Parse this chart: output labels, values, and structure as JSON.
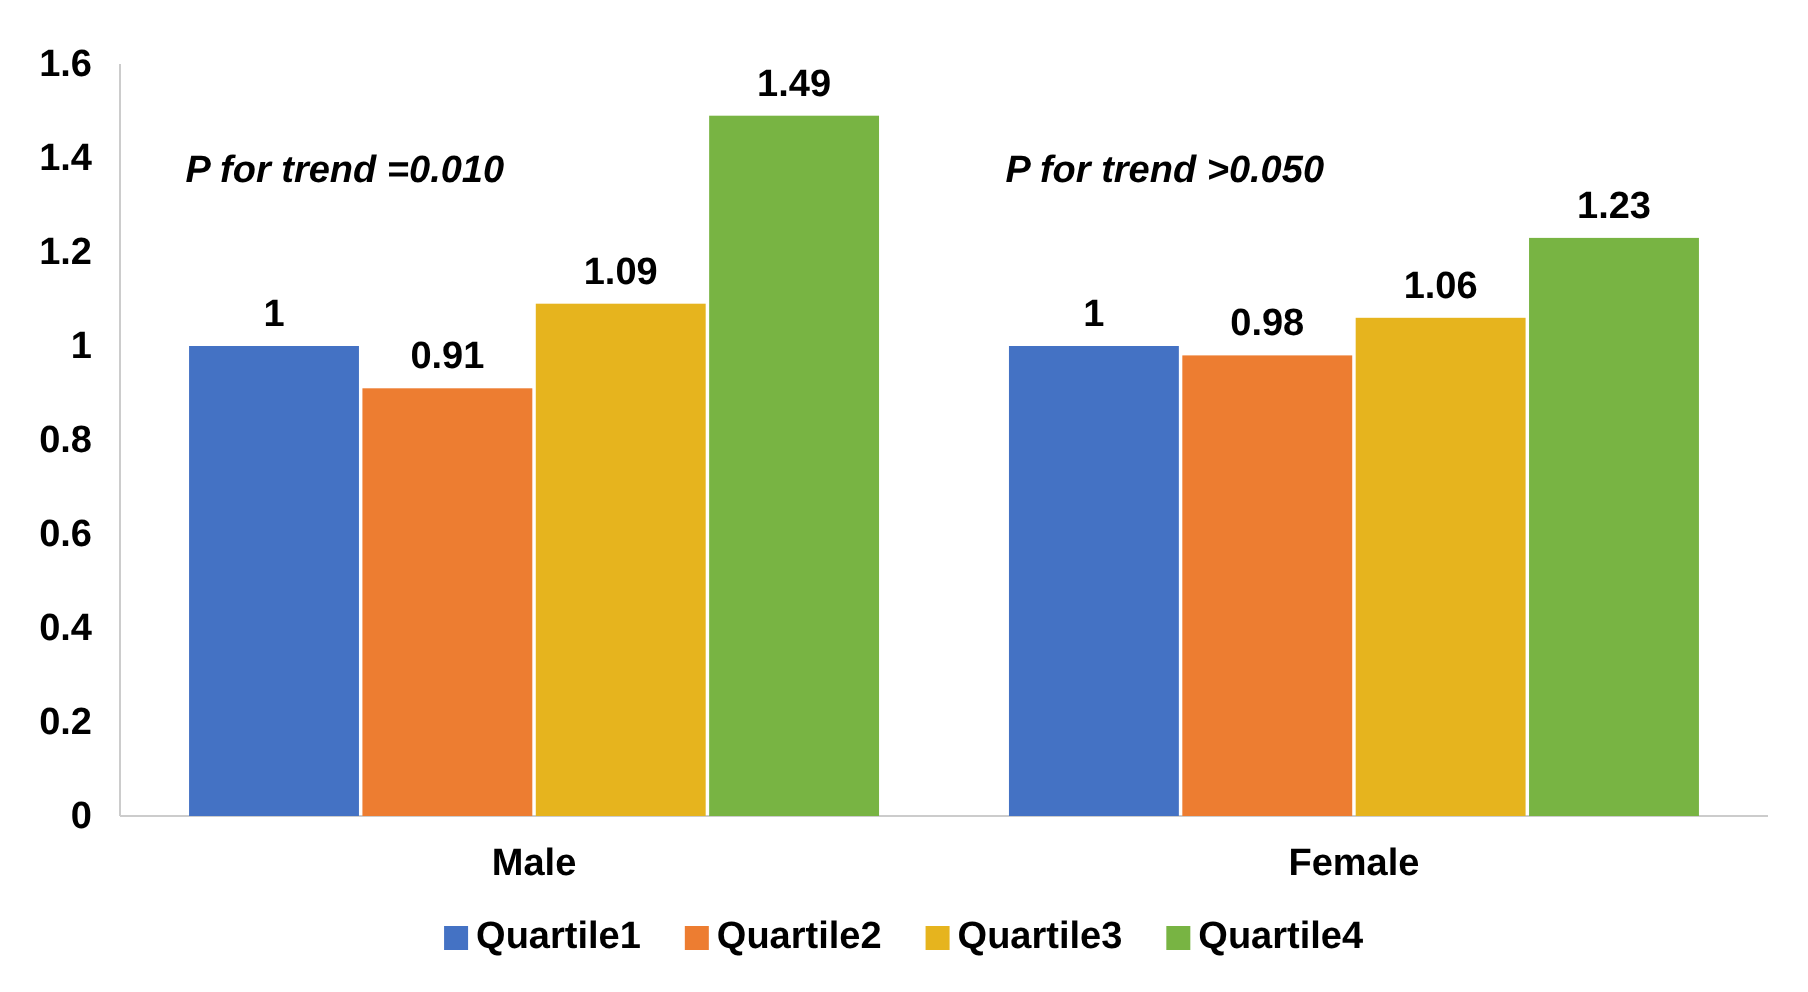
{
  "chart_data": {
    "type": "bar",
    "categories": [
      "Male",
      "Female"
    ],
    "series": [
      {
        "name": "Quartile1",
        "color": "#4472c4",
        "values": [
          1,
          1
        ]
      },
      {
        "name": "Quartile2",
        "color": "#ed7d31",
        "values": [
          0.91,
          0.98
        ]
      },
      {
        "name": "Quartile3",
        "color": "#e6b41e",
        "values": [
          1.09,
          1.06
        ]
      },
      {
        "name": "Quartile4",
        "color": "#78b443",
        "values": [
          1.49,
          1.23
        ]
      }
    ],
    "ylim": [
      0,
      1.6
    ],
    "yticks": [
      0,
      {
        "value": 0.2,
        "label": "0.2"
      },
      {
        "value": 0.4,
        "label": "0.4"
      },
      {
        "value": 0.6,
        "label": "0.6"
      },
      {
        "value": 0.8,
        "label": "0.8"
      },
      1,
      {
        "value": 1.2,
        "label": "1.2"
      },
      {
        "value": 1.4,
        "label": "1.4"
      },
      {
        "value": 1.6,
        "label": "1.6"
      }
    ],
    "annotations": [
      "P for trend =0.010",
      "P for trend >0.050"
    ],
    "data_labels": true,
    "legend": "bottom",
    "grid": false
  }
}
